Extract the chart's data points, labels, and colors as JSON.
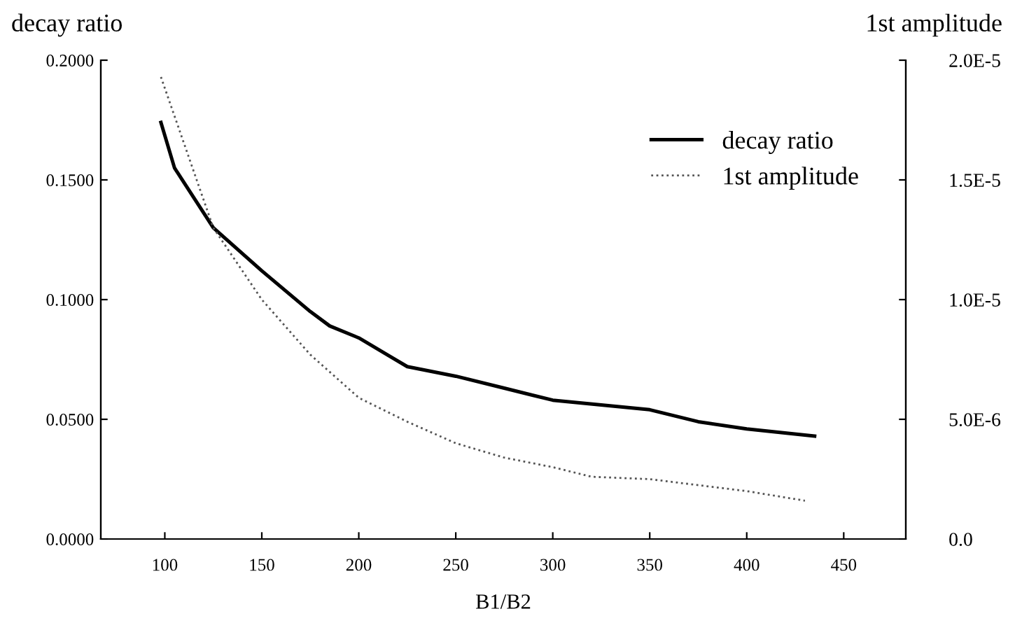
{
  "chart_data": {
    "type": "line",
    "xlabel": "B1/B2",
    "ylabel": "decay ratio",
    "y2label": "1st amplitude",
    "xlim": [
      67,
      482
    ],
    "xticks": [
      100,
      150,
      200,
      250,
      300,
      350,
      400,
      450
    ],
    "ylim": [
      0,
      0.2
    ],
    "yticks": [
      {
        "value": 0,
        "label": "0.0000"
      },
      {
        "value": 0.05,
        "label": "0.0500"
      },
      {
        "value": 0.1,
        "label": "0.1000"
      },
      {
        "value": 0.15,
        "label": "0.1500"
      },
      {
        "value": 0.2,
        "label": "0.2000"
      }
    ],
    "y2lim": [
      0,
      2e-05
    ],
    "y2ticks": [
      {
        "value": 0,
        "label": "0.0"
      },
      {
        "value": 5e-06,
        "label": "5.0E-6"
      },
      {
        "value": 1e-05,
        "label": "1.0E-5"
      },
      {
        "value": 1.5e-05,
        "label": "1.5E-5"
      },
      {
        "value": 2e-05,
        "label": "2.0E-5"
      }
    ],
    "grid": false,
    "legend": "top right",
    "marker": "none",
    "series": [
      {
        "name": "decay ratio",
        "color": "#000000",
        "line_style": "solid",
        "x": [
          98,
          105,
          125,
          150,
          175,
          185,
          200,
          225,
          250,
          275,
          300,
          325,
          350,
          375,
          400,
          435
        ],
        "values": [
          0.174,
          0.155,
          0.13,
          0.112,
          0.095,
          0.089,
          0.084,
          0.072,
          0.068,
          0.063,
          0.058,
          0.056,
          0.054,
          0.049,
          0.046,
          0.043
        ]
      },
      {
        "name": "1st amplitude",
        "color": "#555555",
        "line_style": "dotted",
        "axis": "y2",
        "x": [
          98,
          125,
          150,
          175,
          200,
          225,
          250,
          275,
          300,
          310,
          320,
          350,
          400,
          430
        ],
        "values": [
          1.93e-05,
          1.3e-05,
          1e-05,
          7.7e-06,
          5.9e-06,
          4.9e-06,
          4e-06,
          3.4e-06,
          3e-06,
          2.8e-06,
          2.6e-06,
          2.5e-06,
          2e-06,
          1.6e-06
        ]
      }
    ]
  }
}
